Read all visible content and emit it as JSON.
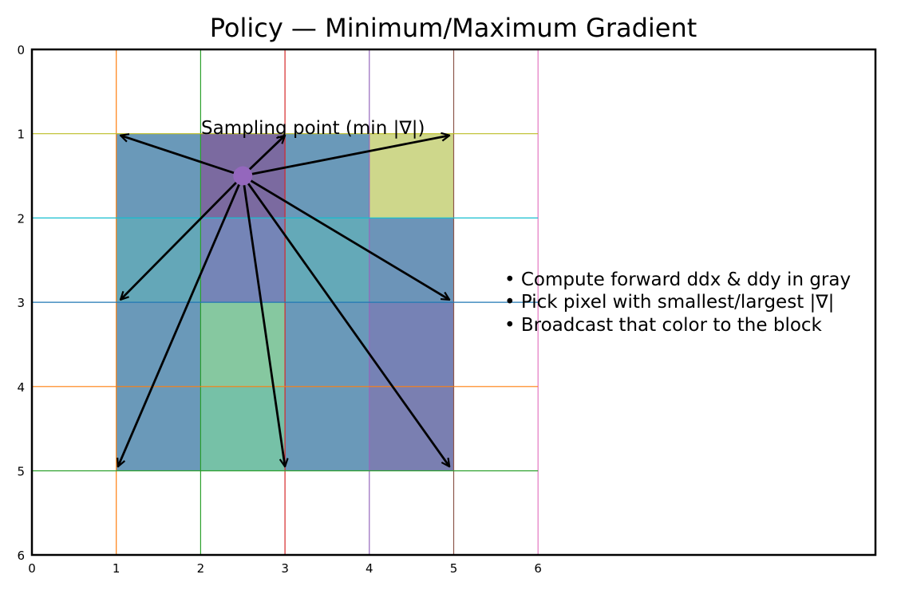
{
  "title": "Policy — Minimum/Maximum Gradient",
  "axes": {
    "x_ticks": [
      "0",
      "1",
      "2",
      "3",
      "4",
      "5",
      "6"
    ],
    "y_ticks": [
      "0",
      "1",
      "2",
      "3",
      "4",
      "5",
      "6"
    ],
    "x_range": [
      0,
      10
    ],
    "y_range": [
      6,
      0
    ],
    "y_inverted": true
  },
  "grid_lines": {
    "vertical": [
      {
        "x": 1,
        "color": "#ff7f0e"
      },
      {
        "x": 2,
        "color": "#2ca02c"
      },
      {
        "x": 3,
        "color": "#d62728"
      },
      {
        "x": 4,
        "color": "#9467bd"
      },
      {
        "x": 5,
        "color": "#8c564b"
      },
      {
        "x": 6,
        "color": "#e377c2"
      }
    ],
    "horizontal": [
      {
        "y": 1,
        "color": "#bcbd22"
      },
      {
        "y": 2,
        "color": "#17becf"
      },
      {
        "y": 3,
        "color": "#1f77b4"
      },
      {
        "y": 4,
        "color": "#ff7f0e"
      },
      {
        "y": 5,
        "color": "#2ca02c"
      }
    ]
  },
  "cells": [
    {
      "x": 1,
      "y": 1,
      "color": "#6a99b9"
    },
    {
      "x": 2,
      "y": 1,
      "color": "#7b6aa0"
    },
    {
      "x": 3,
      "y": 1,
      "color": "#6a99b9"
    },
    {
      "x": 4,
      "y": 1,
      "color": "#ced78b"
    },
    {
      "x": 1,
      "y": 2,
      "color": "#64a7b8"
    },
    {
      "x": 2,
      "y": 2,
      "color": "#7585b7"
    },
    {
      "x": 3,
      "y": 2,
      "color": "#64a9b8"
    },
    {
      "x": 4,
      "y": 2,
      "color": "#6c94b8"
    },
    {
      "x": 1,
      "y": 3,
      "color": "#6a99b9"
    },
    {
      "x": 2,
      "y": 3,
      "color": "#86c8a0"
    },
    {
      "x": 3,
      "y": 3,
      "color": "#6a99b9"
    },
    {
      "x": 4,
      "y": 3,
      "color": "#7682b5"
    },
    {
      "x": 1,
      "y": 4,
      "color": "#6a99b9"
    },
    {
      "x": 2,
      "y": 4,
      "color": "#76c1a7"
    },
    {
      "x": 3,
      "y": 4,
      "color": "#6a99b9"
    },
    {
      "x": 4,
      "y": 4,
      "color": "#7a7fb1"
    }
  ],
  "sampling_point": {
    "x": 2.5,
    "y": 1.5,
    "color": "#9467bd",
    "label": "Sampling point (min |∇|)"
  },
  "arrow_targets": [
    {
      "x": 1.05,
      "y": 1.02
    },
    {
      "x": 3.0,
      "y": 1.02
    },
    {
      "x": 4.95,
      "y": 1.02
    },
    {
      "x": 1.05,
      "y": 2.97
    },
    {
      "x": 4.95,
      "y": 2.97
    },
    {
      "x": 1.02,
      "y": 4.95
    },
    {
      "x": 3.0,
      "y": 4.95
    },
    {
      "x": 4.95,
      "y": 4.95
    }
  ],
  "notes": [
    "• Compute forward ddx & ddy in gray",
    "• Pick pixel with smallest/largest |∇|",
    "• Broadcast that color to the block"
  ]
}
